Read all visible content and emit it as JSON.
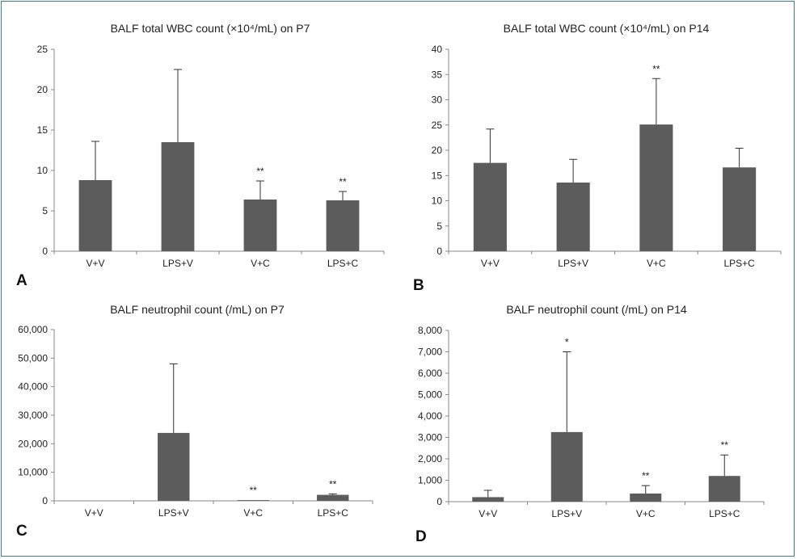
{
  "colors": {
    "bar": "#5c5c5c",
    "axis": "#888888",
    "frame": "#3d7d86"
  },
  "chart_data": [
    {
      "type": "bar",
      "panel": "A",
      "title": "BALF total WBC count (×10⁴/mL) on P7",
      "categories": [
        "V+V",
        "LPS+V",
        "V+C",
        "LPS+C"
      ],
      "values": [
        8.8,
        13.5,
        6.4,
        6.3
      ],
      "errors": [
        4.8,
        9.0,
        2.3,
        1.1
      ],
      "significance": [
        "",
        "",
        "**",
        "**"
      ],
      "ylim": [
        0,
        25
      ],
      "yticks": [
        0,
        5,
        10,
        15,
        20,
        25
      ],
      "ytick_labels": [
        "0",
        "5",
        "10",
        "15",
        "20",
        "25"
      ]
    },
    {
      "type": "bar",
      "panel": "B",
      "title": "BALF total WBC count (×10⁴/mL) on P14",
      "categories": [
        "V+V",
        "LPS+V",
        "V+C",
        "LPS+C"
      ],
      "values": [
        17.5,
        13.6,
        25.1,
        16.6
      ],
      "errors": [
        6.7,
        4.6,
        9.1,
        3.8
      ],
      "significance": [
        "",
        "",
        "**",
        ""
      ],
      "ylim": [
        0,
        40
      ],
      "yticks": [
        0,
        5,
        10,
        15,
        20,
        25,
        30,
        35,
        40
      ],
      "ytick_labels": [
        "0",
        "5",
        "10",
        "15",
        "20",
        "25",
        "30",
        "35",
        "40"
      ]
    },
    {
      "type": "bar",
      "panel": "C",
      "title": "BALF neutrophil count (/mL) on P7",
      "categories": [
        "V+V",
        "LPS+V",
        "V+C",
        "LPS+C"
      ],
      "values": [
        0,
        23800,
        250,
        2100
      ],
      "errors": [
        0,
        24200,
        0,
        350
      ],
      "significance": [
        "",
        "",
        "**",
        "**"
      ],
      "ylim": [
        0,
        60000
      ],
      "yticks": [
        0,
        10000,
        20000,
        30000,
        40000,
        50000,
        60000
      ],
      "ytick_labels": [
        "0",
        "10,000",
        "20,000",
        "30,000",
        "40,000",
        "50,000",
        "60,000"
      ]
    },
    {
      "type": "bar",
      "panel": "D",
      "title": "BALF neutrophil count (/mL) on P14",
      "categories": [
        "V+V",
        "LPS+V",
        "V+C",
        "LPS+C"
      ],
      "values": [
        210,
        3250,
        380,
        1200
      ],
      "errors": [
        320,
        3750,
        370,
        980
      ],
      "significance": [
        "",
        "*",
        "**",
        "**"
      ],
      "ylim": [
        0,
        8000
      ],
      "yticks": [
        0,
        1000,
        2000,
        3000,
        4000,
        5000,
        6000,
        7000,
        8000
      ],
      "ytick_labels": [
        "0",
        "1,000",
        "2,000",
        "3,000",
        "4,000",
        "5,000",
        "6,000",
        "7,000",
        "8,000"
      ]
    }
  ]
}
